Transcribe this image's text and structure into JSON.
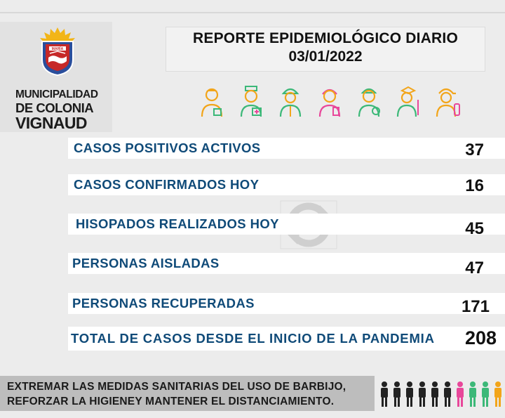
{
  "logo": {
    "line1": "MUNICIPALIDAD",
    "line2": "DE COLONIA",
    "line3": "VIGNAUD",
    "shield_text": "MARÍA"
  },
  "header": {
    "title": "REPORTE EPIDEMIOLÓGICO DIARIO",
    "date": "03/01/2022"
  },
  "stats": [
    {
      "label": "CASOS POSITIVOS ACTIVOS",
      "value": "37"
    },
    {
      "label": "CASOS CONFIRMADOS HOY",
      "value": "16"
    },
    {
      "label": "HISOPADOS REALIZADOS HOY",
      "value": "45"
    },
    {
      "label": "PERSONAS AISLADAS",
      "value": "47"
    },
    {
      "label": "PERSONAS RECUPERADAS",
      "value": "171"
    }
  ],
  "total": {
    "label": "TOTAL DE CASOS DESDE EL INICIO DE LA PANDEMIA",
    "value": "208"
  },
  "footer": {
    "line1": "EXTREMAR LAS MEDIDAS SANITARIAS DEL USO DE BARBIJO,",
    "line2": "REFORZAR LA HIGIENEY MANTENER EL DISTANCIAMIENTO."
  },
  "icons": [
    "delivery-worker-icon",
    "nurse-icon",
    "construction-worker-icon",
    "health-worker-icon",
    "pharmacist-icon",
    "teacher-icon",
    "firefighter-icon"
  ],
  "colors": {
    "label_blue": "#0f4a78",
    "icon_orange": "#f2a51a",
    "icon_green": "#3cb878",
    "icon_pink": "#e8479a"
  }
}
